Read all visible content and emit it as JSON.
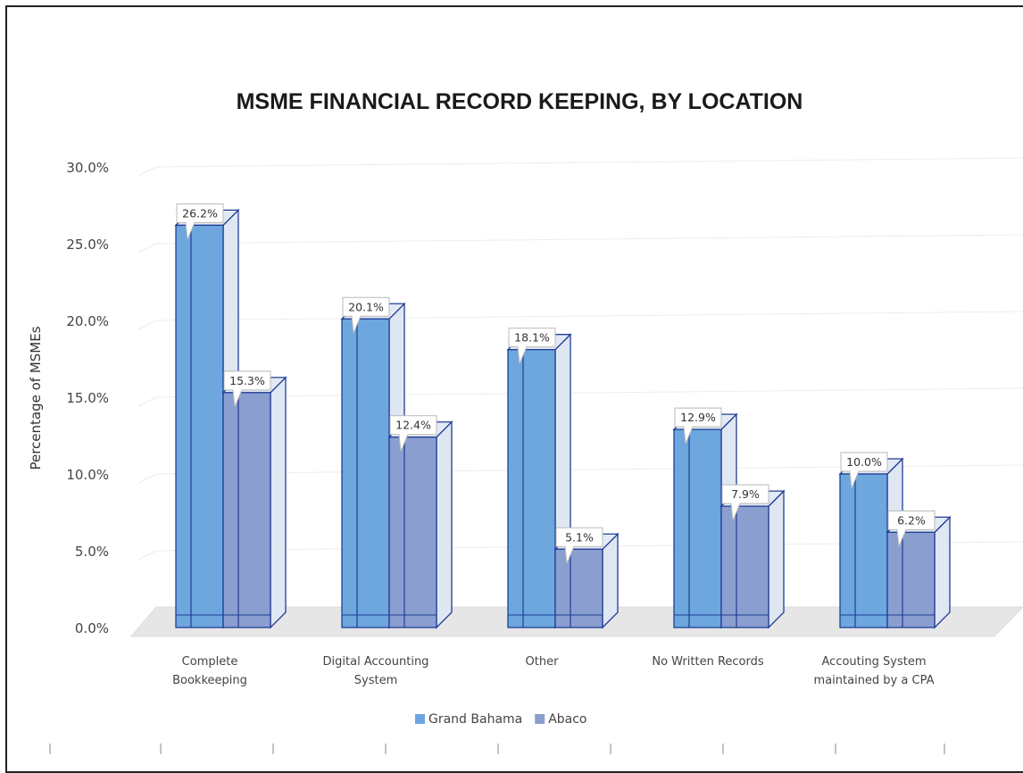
{
  "chart_data": {
    "type": "bar",
    "title": "MSME FINANCIAL RECORD KEEPING, BY LOCATION",
    "xlabel": "",
    "ylabel": "Percentage of MSMEs",
    "ylim": [
      0,
      30
    ],
    "yticks": [
      "0.0%",
      "5.0%",
      "10.0%",
      "15.0%",
      "20.0%",
      "25.0%",
      "30.0%"
    ],
    "categories": [
      [
        "Complete",
        "Bookkeeping"
      ],
      [
        "Digital Accounting",
        "System"
      ],
      [
        "Other"
      ],
      [
        "No Written Records"
      ],
      [
        "Accouting System",
        "maintained by a CPA"
      ]
    ],
    "series": [
      {
        "name": "Grand Bahama",
        "values": [
          26.2,
          20.1,
          18.1,
          12.9,
          10.0
        ],
        "labels": [
          "26.2%",
          "20.1%",
          "18.1%",
          "12.9%",
          "10.0%"
        ],
        "color": "#6ea6de"
      },
      {
        "name": "Abaco",
        "values": [
          15.3,
          12.4,
          5.1,
          7.9,
          6.2
        ],
        "labels": [
          "15.3%",
          "12.4%",
          "5.1%",
          "7.9%",
          "6.2%"
        ],
        "color": "#8a9fcf"
      }
    ],
    "legend_position": "bottom",
    "grid": true,
    "style": "3d-bar"
  }
}
